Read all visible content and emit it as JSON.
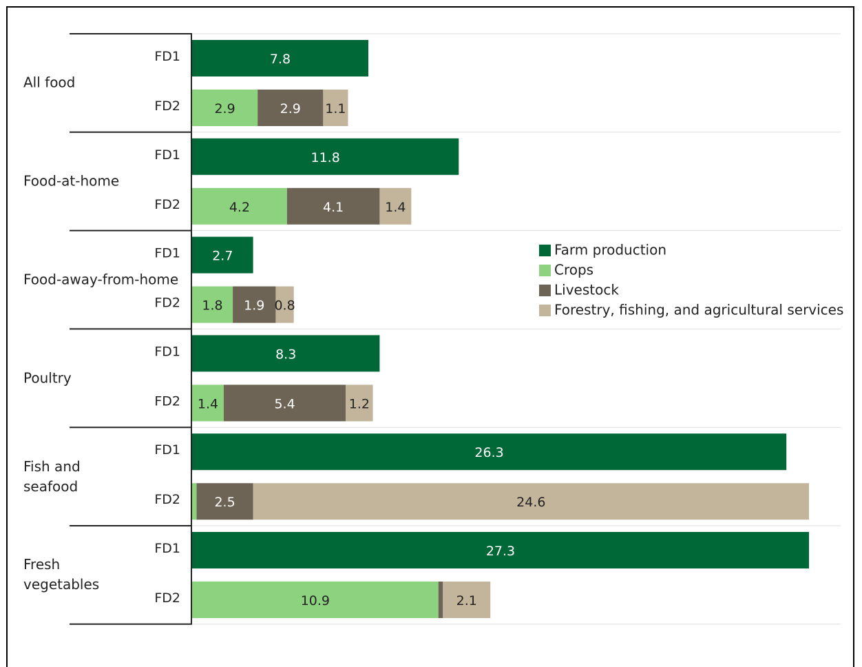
{
  "chart_data": {
    "type": "bar",
    "orientation": "horizontal",
    "categories": [
      "All food",
      "Food-at-home",
      "Food-away-from-home",
      "Poultry",
      "Fish and\nseafood",
      "Fresh\nvegetables"
    ],
    "bars": [
      {
        "label": "FD1",
        "series": [
          {
            "name": "Farm production",
            "color": "#006837",
            "values": [
              7.8,
              11.8,
              2.7,
              8.3,
              26.3,
              27.3
            ]
          }
        ]
      },
      {
        "label": "FD2",
        "series": [
          {
            "name": "Crops",
            "color": "#8cd27f",
            "values": [
              2.9,
              4.2,
              1.8,
              1.4,
              0.2,
              10.9
            ]
          },
          {
            "name": "Livestock",
            "color": "#6e6455",
            "values": [
              2.9,
              4.1,
              1.9,
              5.4,
              2.5,
              0.2
            ]
          },
          {
            "name": "Forestry, fishing, and agricultural services",
            "color": "#c2b59b",
            "values": [
              1.1,
              1.4,
              0.8,
              1.2,
              24.6,
              2.1
            ]
          }
        ]
      }
    ]
  }
}
